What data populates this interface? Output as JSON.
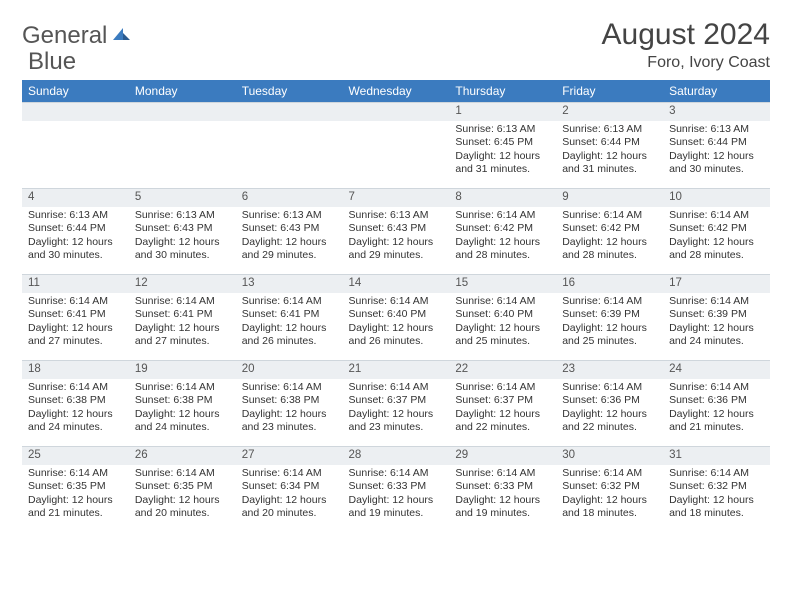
{
  "logo": {
    "word1": "General",
    "word2": "Blue"
  },
  "title": "August 2024",
  "location": "Foro, Ivory Coast",
  "colors": {
    "header_bg": "#3b7bbf",
    "header_text": "#ffffff",
    "daynum_bg": "#eceff2",
    "border": "#cfd6dc",
    "text": "#333333",
    "logo_gray": "#555555",
    "logo_blue": "#3b7bbf"
  },
  "typography": {
    "title_fontsize": 30,
    "location_fontsize": 16,
    "weekday_fontsize": 12,
    "daynum_fontsize": 11.5,
    "body_fontsize": 10.5
  },
  "weekdays": [
    "Sunday",
    "Monday",
    "Tuesday",
    "Wednesday",
    "Thursday",
    "Friday",
    "Saturday"
  ],
  "weeks": [
    [
      null,
      null,
      null,
      null,
      {
        "n": "1",
        "sr": "Sunrise: 6:13 AM",
        "ss": "Sunset: 6:45 PM",
        "dl": "Daylight: 12 hours and 31 minutes."
      },
      {
        "n": "2",
        "sr": "Sunrise: 6:13 AM",
        "ss": "Sunset: 6:44 PM",
        "dl": "Daylight: 12 hours and 31 minutes."
      },
      {
        "n": "3",
        "sr": "Sunrise: 6:13 AM",
        "ss": "Sunset: 6:44 PM",
        "dl": "Daylight: 12 hours and 30 minutes."
      }
    ],
    [
      {
        "n": "4",
        "sr": "Sunrise: 6:13 AM",
        "ss": "Sunset: 6:44 PM",
        "dl": "Daylight: 12 hours and 30 minutes."
      },
      {
        "n": "5",
        "sr": "Sunrise: 6:13 AM",
        "ss": "Sunset: 6:43 PM",
        "dl": "Daylight: 12 hours and 30 minutes."
      },
      {
        "n": "6",
        "sr": "Sunrise: 6:13 AM",
        "ss": "Sunset: 6:43 PM",
        "dl": "Daylight: 12 hours and 29 minutes."
      },
      {
        "n": "7",
        "sr": "Sunrise: 6:13 AM",
        "ss": "Sunset: 6:43 PM",
        "dl": "Daylight: 12 hours and 29 minutes."
      },
      {
        "n": "8",
        "sr": "Sunrise: 6:14 AM",
        "ss": "Sunset: 6:42 PM",
        "dl": "Daylight: 12 hours and 28 minutes."
      },
      {
        "n": "9",
        "sr": "Sunrise: 6:14 AM",
        "ss": "Sunset: 6:42 PM",
        "dl": "Daylight: 12 hours and 28 minutes."
      },
      {
        "n": "10",
        "sr": "Sunrise: 6:14 AM",
        "ss": "Sunset: 6:42 PM",
        "dl": "Daylight: 12 hours and 28 minutes."
      }
    ],
    [
      {
        "n": "11",
        "sr": "Sunrise: 6:14 AM",
        "ss": "Sunset: 6:41 PM",
        "dl": "Daylight: 12 hours and 27 minutes."
      },
      {
        "n": "12",
        "sr": "Sunrise: 6:14 AM",
        "ss": "Sunset: 6:41 PM",
        "dl": "Daylight: 12 hours and 27 minutes."
      },
      {
        "n": "13",
        "sr": "Sunrise: 6:14 AM",
        "ss": "Sunset: 6:41 PM",
        "dl": "Daylight: 12 hours and 26 minutes."
      },
      {
        "n": "14",
        "sr": "Sunrise: 6:14 AM",
        "ss": "Sunset: 6:40 PM",
        "dl": "Daylight: 12 hours and 26 minutes."
      },
      {
        "n": "15",
        "sr": "Sunrise: 6:14 AM",
        "ss": "Sunset: 6:40 PM",
        "dl": "Daylight: 12 hours and 25 minutes."
      },
      {
        "n": "16",
        "sr": "Sunrise: 6:14 AM",
        "ss": "Sunset: 6:39 PM",
        "dl": "Daylight: 12 hours and 25 minutes."
      },
      {
        "n": "17",
        "sr": "Sunrise: 6:14 AM",
        "ss": "Sunset: 6:39 PM",
        "dl": "Daylight: 12 hours and 24 minutes."
      }
    ],
    [
      {
        "n": "18",
        "sr": "Sunrise: 6:14 AM",
        "ss": "Sunset: 6:38 PM",
        "dl": "Daylight: 12 hours and 24 minutes."
      },
      {
        "n": "19",
        "sr": "Sunrise: 6:14 AM",
        "ss": "Sunset: 6:38 PM",
        "dl": "Daylight: 12 hours and 24 minutes."
      },
      {
        "n": "20",
        "sr": "Sunrise: 6:14 AM",
        "ss": "Sunset: 6:38 PM",
        "dl": "Daylight: 12 hours and 23 minutes."
      },
      {
        "n": "21",
        "sr": "Sunrise: 6:14 AM",
        "ss": "Sunset: 6:37 PM",
        "dl": "Daylight: 12 hours and 23 minutes."
      },
      {
        "n": "22",
        "sr": "Sunrise: 6:14 AM",
        "ss": "Sunset: 6:37 PM",
        "dl": "Daylight: 12 hours and 22 minutes."
      },
      {
        "n": "23",
        "sr": "Sunrise: 6:14 AM",
        "ss": "Sunset: 6:36 PM",
        "dl": "Daylight: 12 hours and 22 minutes."
      },
      {
        "n": "24",
        "sr": "Sunrise: 6:14 AM",
        "ss": "Sunset: 6:36 PM",
        "dl": "Daylight: 12 hours and 21 minutes."
      }
    ],
    [
      {
        "n": "25",
        "sr": "Sunrise: 6:14 AM",
        "ss": "Sunset: 6:35 PM",
        "dl": "Daylight: 12 hours and 21 minutes."
      },
      {
        "n": "26",
        "sr": "Sunrise: 6:14 AM",
        "ss": "Sunset: 6:35 PM",
        "dl": "Daylight: 12 hours and 20 minutes."
      },
      {
        "n": "27",
        "sr": "Sunrise: 6:14 AM",
        "ss": "Sunset: 6:34 PM",
        "dl": "Daylight: 12 hours and 20 minutes."
      },
      {
        "n": "28",
        "sr": "Sunrise: 6:14 AM",
        "ss": "Sunset: 6:33 PM",
        "dl": "Daylight: 12 hours and 19 minutes."
      },
      {
        "n": "29",
        "sr": "Sunrise: 6:14 AM",
        "ss": "Sunset: 6:33 PM",
        "dl": "Daylight: 12 hours and 19 minutes."
      },
      {
        "n": "30",
        "sr": "Sunrise: 6:14 AM",
        "ss": "Sunset: 6:32 PM",
        "dl": "Daylight: 12 hours and 18 minutes."
      },
      {
        "n": "31",
        "sr": "Sunrise: 6:14 AM",
        "ss": "Sunset: 6:32 PM",
        "dl": "Daylight: 12 hours and 18 minutes."
      }
    ]
  ]
}
